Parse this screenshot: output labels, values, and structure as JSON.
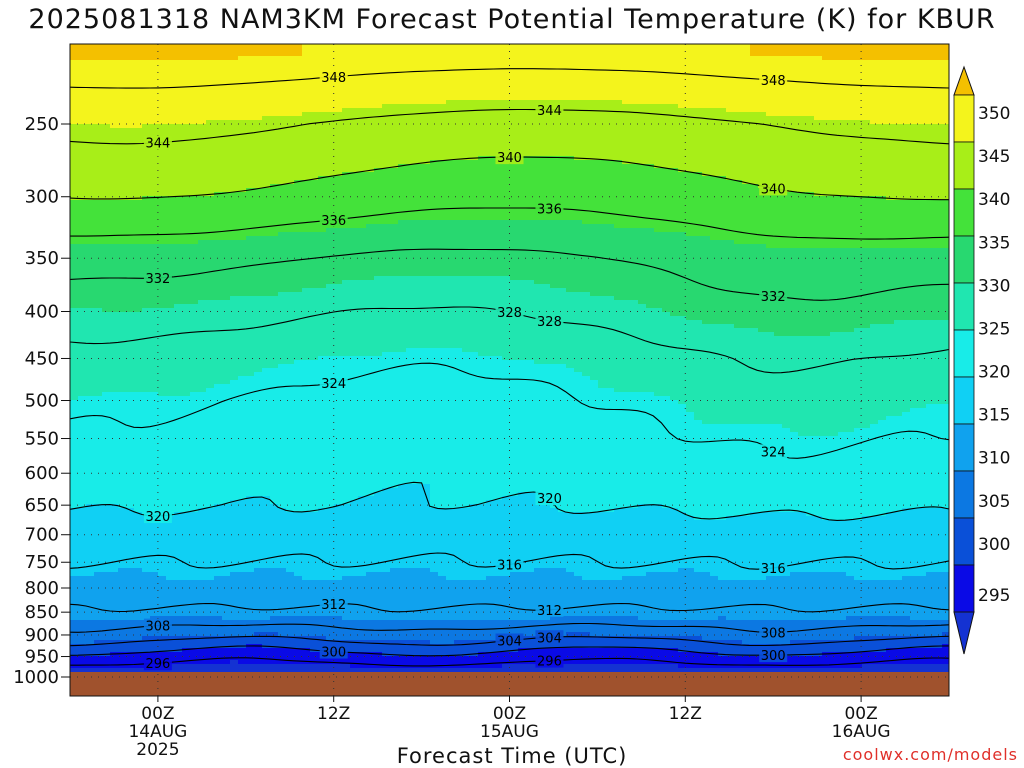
{
  "title": "2025081318 NAM3KM Forecast Potential Temperature (K) for KBUR",
  "watermark": "coolwx.com/models",
  "chart_data": {
    "type": "heatmap",
    "title": "2025081318 NAM3KM Forecast Potential Temperature (K) for KBUR",
    "xlabel": "Forecast Time (UTC)",
    "ylabel": "",
    "x_ticks": [
      {
        "label": "00Z",
        "sub": [
          "14AUG",
          "2025"
        ],
        "hour": 6
      },
      {
        "label": "12Z",
        "sub": [],
        "hour": 18
      },
      {
        "label": "00Z",
        "sub": [
          "15AUG"
        ],
        "hour": 30
      },
      {
        "label": "12Z",
        "sub": [],
        "hour": 42
      },
      {
        "label": "00Z",
        "sub": [
          "16AUG"
        ],
        "hour": 54
      }
    ],
    "xlim_hours": [
      0,
      60
    ],
    "y_pressure_levels": [
      250,
      300,
      350,
      400,
      450,
      500,
      550,
      600,
      650,
      700,
      750,
      800,
      850,
      900,
      950,
      1000
    ],
    "ylim_hpa": [
      200,
      1000
    ],
    "y_scale": "log-pressure",
    "colorbar_ticks": [
      350,
      345,
      340,
      335,
      330,
      325,
      320,
      315,
      310,
      305,
      300,
      295
    ],
    "colorbar_levels": [
      {
        "min": 290,
        "max": 295,
        "color": "#1432d2"
      },
      {
        "min": 295,
        "max": 300,
        "color": "#0a0ae6"
      },
      {
        "min": 300,
        "max": 305,
        "color": "#0a50d8"
      },
      {
        "min": 305,
        "max": 310,
        "color": "#0c78e2"
      },
      {
        "min": 310,
        "max": 315,
        "color": "#10a2ee"
      },
      {
        "min": 315,
        "max": 320,
        "color": "#10d0f4"
      },
      {
        "min": 320,
        "max": 325,
        "color": "#18ece8"
      },
      {
        "min": 325,
        "max": 330,
        "color": "#20e6b0"
      },
      {
        "min": 330,
        "max": 335,
        "color": "#28d870"
      },
      {
        "min": 335,
        "max": 340,
        "color": "#44e23a"
      },
      {
        "min": 340,
        "max": 345,
        "color": "#a8ee18"
      },
      {
        "min": 345,
        "max": 350,
        "color": "#f4f41c"
      },
      {
        "min": 350,
        "max": 360,
        "color": "#f4c000"
      }
    ],
    "contour_levels": [
      296,
      300,
      304,
      308,
      312,
      316,
      320,
      324,
      328,
      332,
      336,
      340,
      344,
      348
    ],
    "profile_hpa": [
      210,
      250,
      300,
      350,
      400,
      450,
      500,
      550,
      600,
      650,
      700,
      750,
      800,
      850,
      900,
      950,
      980
    ],
    "profile_k": [
      350,
      344,
      339,
      333,
      330,
      327,
      325,
      323.5,
      322,
      320.5,
      318,
      316,
      314,
      311.5,
      306,
      298,
      294
    ],
    "ground_color": "#a0522d",
    "grid": "dotted"
  }
}
